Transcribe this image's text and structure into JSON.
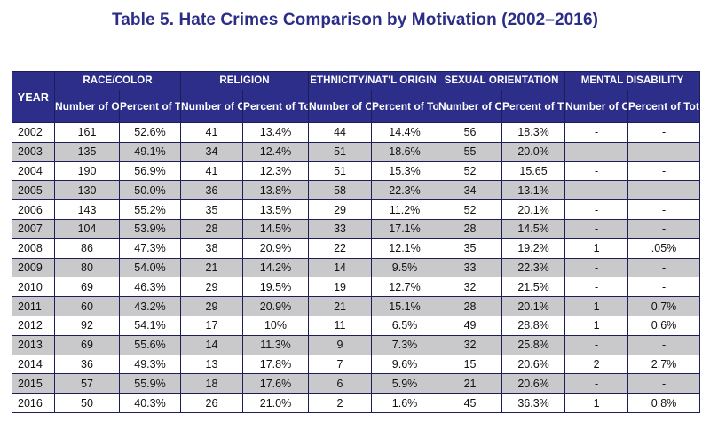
{
  "title": "Table 5. Hate Crimes Comparison by Motivation (2002–2016)",
  "header": {
    "year": "YEAR",
    "groups": [
      "RACE/COLOR",
      "RELIGION",
      "ETHNICITY/NAT'L ORIGIN",
      "SEXUAL ORIENTATION",
      "MENTAL DISABILITY"
    ],
    "sub": {
      "number": "Number of Offenses",
      "percent": "Percent of Total"
    }
  },
  "rows": [
    [
      "2002",
      "161",
      "52.6%",
      "41",
      "13.4%",
      "44",
      "14.4%",
      "56",
      "18.3%",
      "-",
      "-"
    ],
    [
      "2003",
      "135",
      "49.1%",
      "34",
      "12.4%",
      "51",
      "18.6%",
      "55",
      "20.0%",
      "-",
      "-"
    ],
    [
      "2004",
      "190",
      "56.9%",
      "41",
      "12.3%",
      "51",
      "15.3%",
      "52",
      "15.65",
      "-",
      "-"
    ],
    [
      "2005",
      "130",
      "50.0%",
      "36",
      "13.8%",
      "58",
      "22.3%",
      "34",
      "13.1%",
      "-",
      "-"
    ],
    [
      "2006",
      "143",
      "55.2%",
      "35",
      "13.5%",
      "29",
      "11.2%",
      "52",
      "20.1%",
      "-",
      "-"
    ],
    [
      "2007",
      "104",
      "53.9%",
      "28",
      "14.5%",
      "33",
      "17.1%",
      "28",
      "14.5%",
      "-",
      "-"
    ],
    [
      "2008",
      "86",
      "47.3%",
      "38",
      "20.9%",
      "22",
      "12.1%",
      "35",
      "19.2%",
      "1",
      ".05%"
    ],
    [
      "2009",
      "80",
      "54.0%",
      "21",
      "14.2%",
      "14",
      "9.5%",
      "33",
      "22.3%",
      "-",
      "-"
    ],
    [
      "2010",
      "69",
      "46.3%",
      "29",
      "19.5%",
      "19",
      "12.7%",
      "32",
      "21.5%",
      "-",
      "-"
    ],
    [
      "2011",
      "60",
      "43.2%",
      "29",
      "20.9%",
      "21",
      "15.1%",
      "28",
      "20.1%",
      "1",
      "0.7%"
    ],
    [
      "2012",
      "92",
      "54.1%",
      "17",
      "10%",
      "11",
      "6.5%",
      "49",
      "28.8%",
      "1",
      "0.6%"
    ],
    [
      "2013",
      "69",
      "55.6%",
      "14",
      "11.3%",
      "9",
      "7.3%",
      "32",
      "25.8%",
      "-",
      "-"
    ],
    [
      "2014",
      "36",
      "49.3%",
      "13",
      "17.8%",
      "7",
      "9.6%",
      "15",
      "20.6%",
      "2",
      "2.7%"
    ],
    [
      "2015",
      "57",
      "55.9%",
      "18",
      "17.6%",
      "6",
      "5.9%",
      "21",
      "20.6%",
      "-",
      "-"
    ],
    [
      "2016",
      "50",
      "40.3%",
      "26",
      "21.0%",
      "2",
      "1.6%",
      "45",
      "36.3%",
      "1",
      "0.8%"
    ]
  ]
}
